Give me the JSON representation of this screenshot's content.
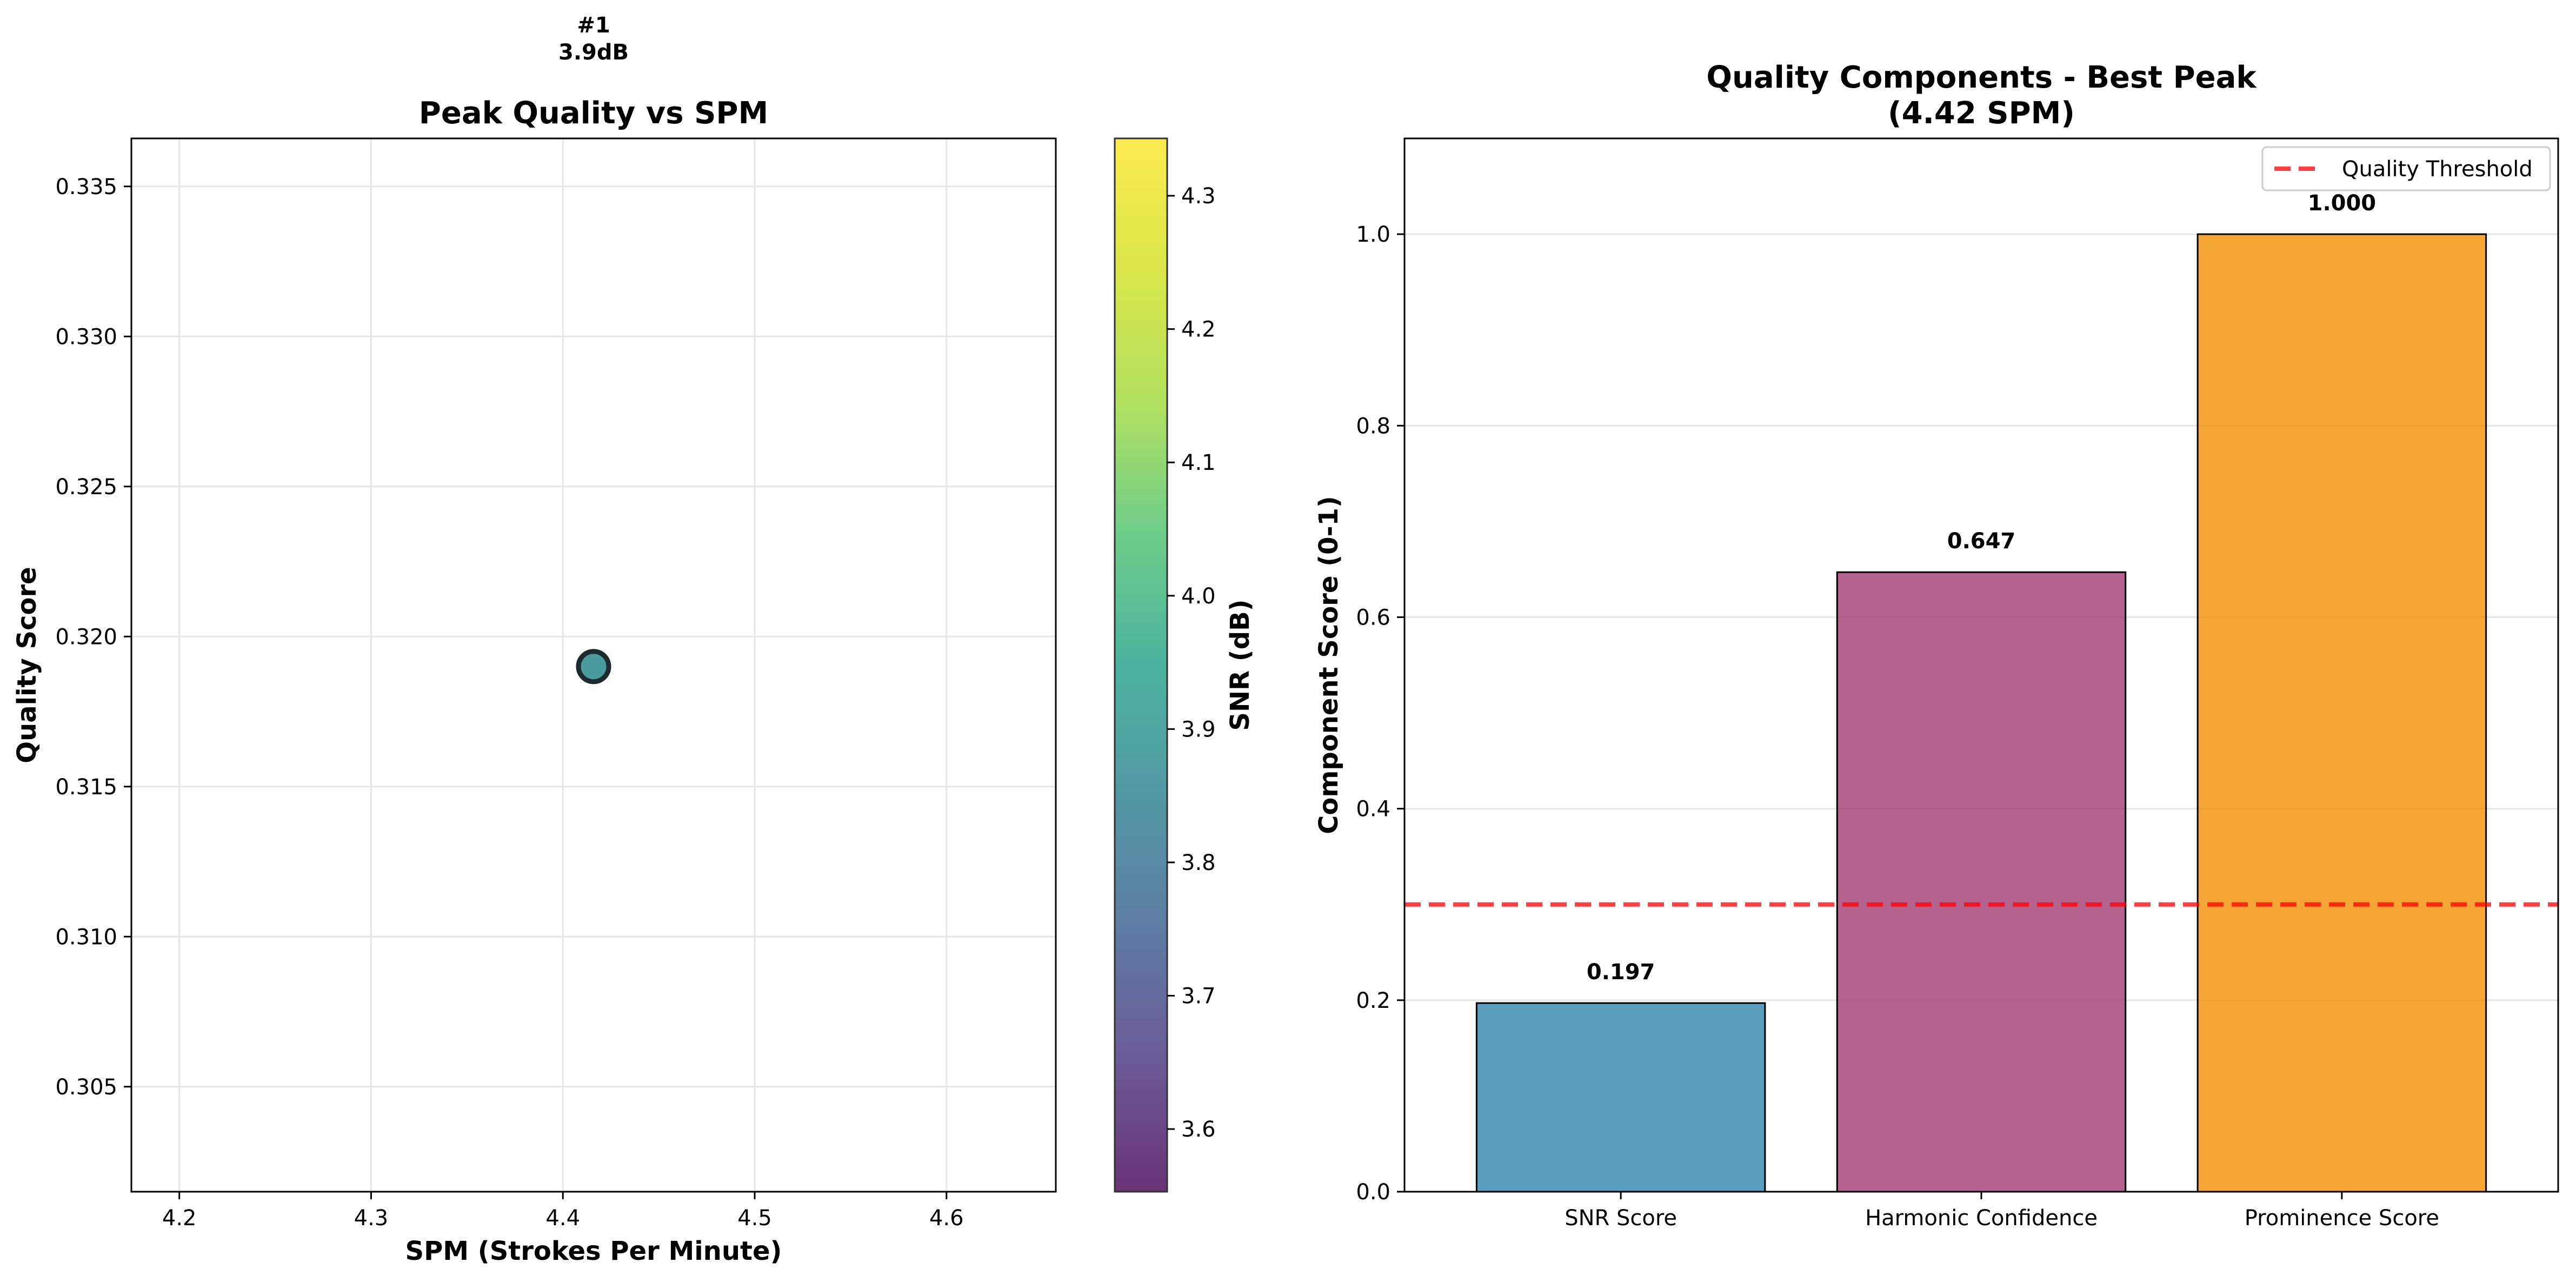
{
  "chart_data": [
    {
      "type": "scatter",
      "title": "Peak Quality vs SPM",
      "xlabel": "SPM (Strokes Per Minute)",
      "ylabel": "Quality Score",
      "xlim": [
        4.175,
        4.657
      ],
      "ylim": [
        0.3015,
        0.3366
      ],
      "xticks": [
        "4.2",
        "4.3",
        "4.4",
        "4.5",
        "4.6"
      ],
      "yticks": [
        "0.305",
        "0.310",
        "0.315",
        "0.320",
        "0.325",
        "0.330",
        "0.335"
      ],
      "grid": true,
      "points": [
        {
          "x": 4.416,
          "y": 0.319,
          "snr_db": 3.9,
          "annotation_rank": "#1",
          "annotation_snr": "3.9dB"
        }
      ],
      "colorbar": {
        "label": "SNR (dB)",
        "colormap": "viridis",
        "range": [
          3.553,
          4.343
        ],
        "ticks": [
          "3.6",
          "3.7",
          "3.8",
          "3.9",
          "4.0",
          "4.1",
          "4.2",
          "4.3"
        ]
      }
    },
    {
      "type": "bar",
      "title_line1": "Quality Components - Best Peak",
      "title_line2": "(4.42 SPM)",
      "xlabel": "",
      "ylabel": "Component Score (0-1)",
      "ylim": [
        0,
        1.1
      ],
      "yticks": [
        "0.0",
        "0.2",
        "0.4",
        "0.6",
        "0.8",
        "1.0"
      ],
      "categories": [
        "SNR Score",
        "Harmonic Confidence",
        "Prominence Score"
      ],
      "values": [
        0.197,
        0.647,
        1.0
      ],
      "value_labels": [
        "0.197",
        "0.647",
        "1.000"
      ],
      "colors": [
        "#2E86AB",
        "#A23B72",
        "#F18F01"
      ],
      "threshold": {
        "value": 0.3,
        "label": "Quality Threshold",
        "color": "#FF0000"
      },
      "legend_position": "top-right",
      "grid": "y"
    }
  ]
}
